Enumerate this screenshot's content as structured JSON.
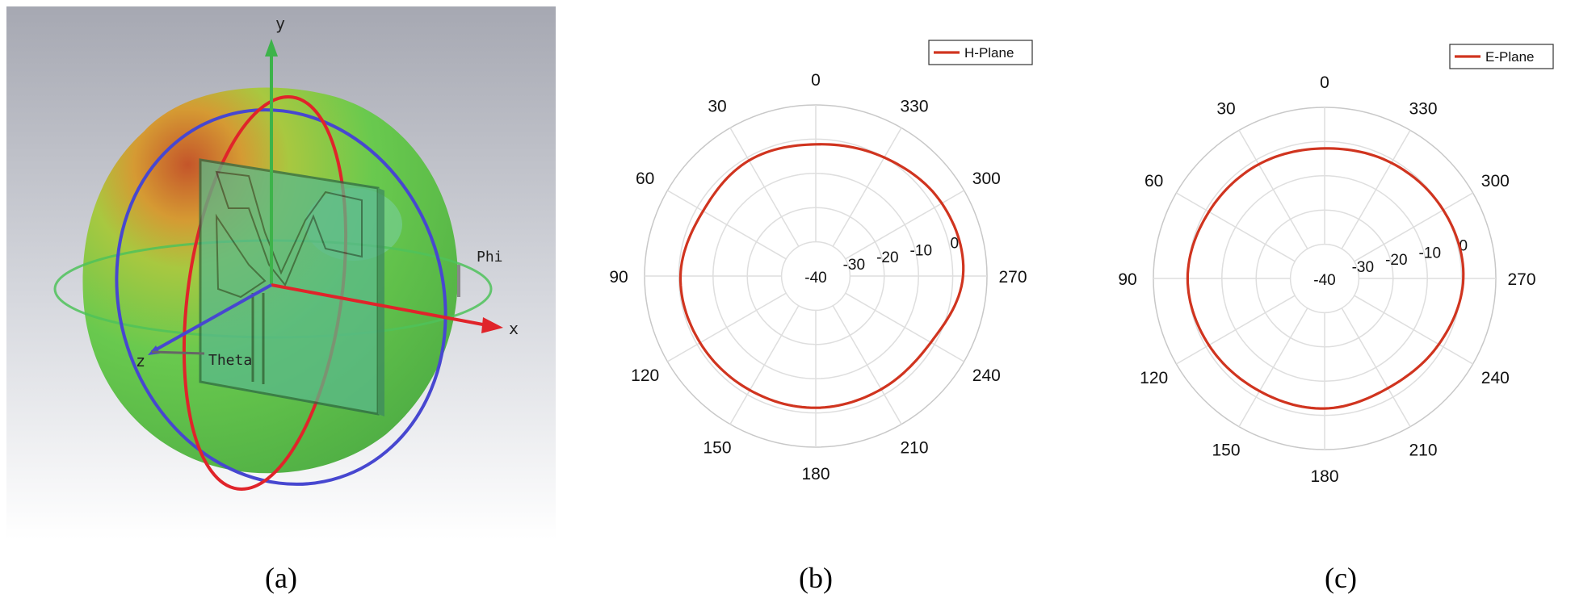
{
  "panel_a": {
    "axis_labels": {
      "y": "y",
      "x": "x",
      "z": "z",
      "phi": "Phi",
      "theta": "Theta"
    },
    "colors": {
      "gradient_top": "#a9abb4",
      "sphere": "#63c34f",
      "hot": "#c85a22",
      "ring_red": "#e0242a",
      "ring_blue": "#4a4ad0",
      "axis_green": "#3db34a"
    }
  },
  "captions": {
    "a": "(a)",
    "b": "(b)",
    "c": "(c)"
  },
  "chart_data": [
    {
      "type": "polar",
      "legend_label": "H-Plane",
      "legend_position": "top-right",
      "series_color": "#d0341f",
      "theta_direction": "counterclockwise",
      "theta_zero": "top",
      "angle_ticks": [
        "0",
        "30",
        "60",
        "90",
        "120",
        "150",
        "180",
        "210",
        "240",
        "270",
        "300",
        "330"
      ],
      "r_ticks": [
        "-40",
        "-30",
        "-20",
        "-10",
        "0"
      ],
      "r_range": [
        -40,
        10
      ],
      "angles_deg": [
        0,
        30,
        60,
        90,
        120,
        150,
        180,
        210,
        240,
        270,
        300,
        330
      ],
      "values_db": [
        -1.5,
        -1,
        -2,
        -0.5,
        -1,
        -1.5,
        -1.5,
        -1.8,
        -1.2,
        3,
        2.5,
        0
      ]
    },
    {
      "type": "polar",
      "legend_label": "E-Plane",
      "legend_position": "top-right",
      "series_color": "#d0341f",
      "theta_direction": "counterclockwise",
      "theta_zero": "top",
      "angle_ticks": [
        "0",
        "30",
        "60",
        "90",
        "120",
        "150",
        "180",
        "210",
        "240",
        "270",
        "300",
        "330"
      ],
      "r_ticks": [
        "-40",
        "-30",
        "-20",
        "-10",
        "0"
      ],
      "r_range": [
        -40,
        10
      ],
      "angles_deg": [
        0,
        30,
        60,
        90,
        120,
        150,
        180,
        210,
        240,
        270,
        300,
        330
      ],
      "values_db": [
        -2,
        -1.5,
        -1,
        0,
        -1,
        -2,
        -2,
        -3,
        -1.5,
        0.5,
        0,
        -1
      ]
    }
  ]
}
